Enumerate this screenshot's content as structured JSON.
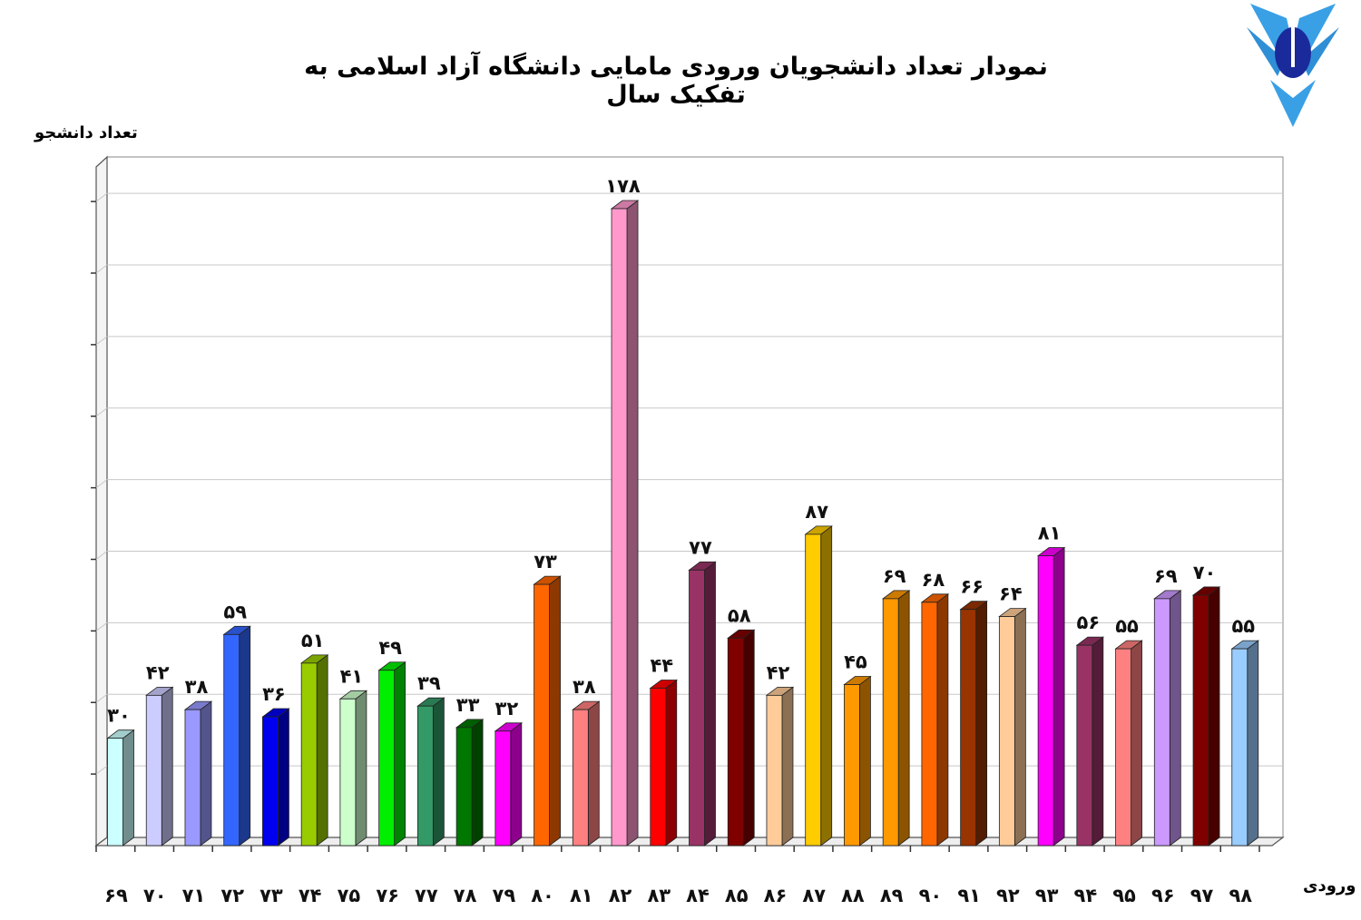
{
  "chart_data": {
    "type": "bar",
    "title": "نمودار تعداد دانشجویان ورودی مامایی دانشگاه آزاد اسلامی  به تفکیک سال",
    "ylabel": "تعداد دانشجو",
    "xlabel": "ورودی",
    "ylim": [
      0,
      190
    ],
    "grid": true,
    "categories": [
      "۶۹",
      "۷۰",
      "۷۱",
      "۷۲",
      "۷۳",
      "۷۴",
      "۷۵",
      "۷۶",
      "۷۷",
      "۷۸",
      "۷۹",
      "۸۰",
      "۸۱",
      "۸۲",
      "۸۳",
      "۸۴",
      "۸۵",
      "۸۶",
      "۸۷",
      "۸۸",
      "۸۹",
      "۹۰",
      "۹۱",
      "۹۲",
      "۹۳",
      "۹۴",
      "۹۵",
      "۹۶",
      "۹۷",
      "۹۸"
    ],
    "values": [
      30,
      42,
      38,
      59,
      36,
      51,
      41,
      49,
      39,
      33,
      32,
      73,
      38,
      178,
      44,
      77,
      58,
      42,
      87,
      45,
      69,
      68,
      66,
      64,
      81,
      56,
      55,
      69,
      70,
      55
    ],
    "value_labels": [
      "۳۰",
      "۴۲",
      "۳۸",
      "۵۹",
      "۳۶",
      "۵۱",
      "۴۱",
      "۴۹",
      "۳۹",
      "۳۳",
      "۳۲",
      "۷۳",
      "۳۸",
      "۱۷۸",
      "۴۴",
      "۷۷",
      "۵۸",
      "۴۲",
      "۸۷",
      "۴۵",
      "۶۹",
      "۶۸",
      "۶۶",
      "۶۴",
      "۸۱",
      "۵۶",
      "۵۵",
      "۶۹",
      "۷۰",
      "۵۵"
    ],
    "colors": [
      "#ccffff",
      "#ccccff",
      "#9999ff",
      "#3366ff",
      "#0000ee",
      "#99cc00",
      "#ccffcc",
      "#00ee00",
      "#339966",
      "#007700",
      "#ff00ff",
      "#ff6600",
      "#ff8080",
      "#ff99cc",
      "#ff0000",
      "#993366",
      "#800000",
      "#ffcc99",
      "#ffcc00",
      "#ff9900",
      "#ff9900",
      "#ff6600",
      "#993300",
      "#ffcc99",
      "#ff00ff",
      "#993366",
      "#ff8080",
      "#cc99ff",
      "#800000",
      "#99ccff"
    ]
  }
}
